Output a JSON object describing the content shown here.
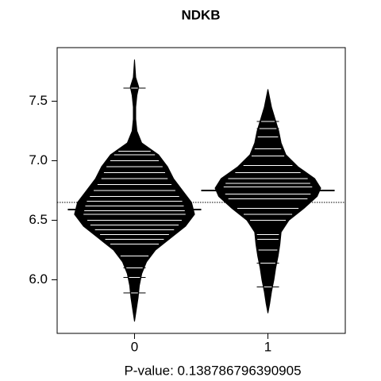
{
  "chart_data": {
    "type": "beanplot",
    "title": "NDKB",
    "xlabel": "P-value: 0.138786796390905",
    "categories": [
      "0",
      "1"
    ],
    "ylim": [
      5.55,
      7.95
    ],
    "yticks": [
      {
        "value": 6,
        "label": "6.0"
      },
      6.5,
      {
        "value": 7,
        "label": "7.0"
      },
      7.5
    ],
    "overall_mean": 6.65,
    "color": "#000000",
    "groups": [
      {
        "mean": 6.59,
        "observations": [
          7.61,
          7.08,
          7.05,
          7.0,
          6.95,
          6.9,
          6.85,
          6.8,
          6.75,
          6.7,
          6.66,
          6.62,
          6.58,
          6.55,
          6.5,
          6.46,
          6.42,
          6.38,
          6.34,
          6.3,
          6.2,
          6.1,
          6.02,
          5.89
        ],
        "density_y": [
          5.65,
          5.75,
          5.85,
          5.95,
          6.05,
          6.15,
          6.25,
          6.35,
          6.45,
          6.55,
          6.65,
          6.75,
          6.85,
          6.95,
          7.05,
          7.15,
          7.25,
          7.35,
          7.45,
          7.55,
          7.62,
          7.7,
          7.85
        ],
        "density_width": [
          0,
          0.03,
          0.06,
          0.08,
          0.12,
          0.2,
          0.35,
          0.6,
          0.85,
          1.0,
          0.95,
          0.8,
          0.65,
          0.55,
          0.4,
          0.12,
          0.04,
          0.02,
          0.02,
          0.04,
          0.07,
          0.02,
          0
        ]
      },
      {
        "mean": 6.75,
        "observations": [
          7.33,
          7.27,
          7.2,
          7.1,
          7.04,
          6.96,
          6.9,
          6.85,
          6.81,
          6.78,
          6.72,
          6.68,
          6.6,
          6.55,
          6.5,
          6.38,
          6.34,
          6.25,
          6.14,
          5.94
        ],
        "density_y": [
          5.72,
          5.8,
          5.9,
          6.0,
          6.1,
          6.2,
          6.3,
          6.4,
          6.5,
          6.6,
          6.7,
          6.77,
          6.85,
          6.95,
          7.05,
          7.15,
          7.25,
          7.35,
          7.45,
          7.6
        ],
        "density_width": [
          0,
          0.03,
          0.06,
          0.1,
          0.13,
          0.17,
          0.2,
          0.22,
          0.35,
          0.6,
          0.82,
          0.88,
          0.78,
          0.5,
          0.3,
          0.22,
          0.18,
          0.12,
          0.06,
          0
        ]
      }
    ]
  }
}
